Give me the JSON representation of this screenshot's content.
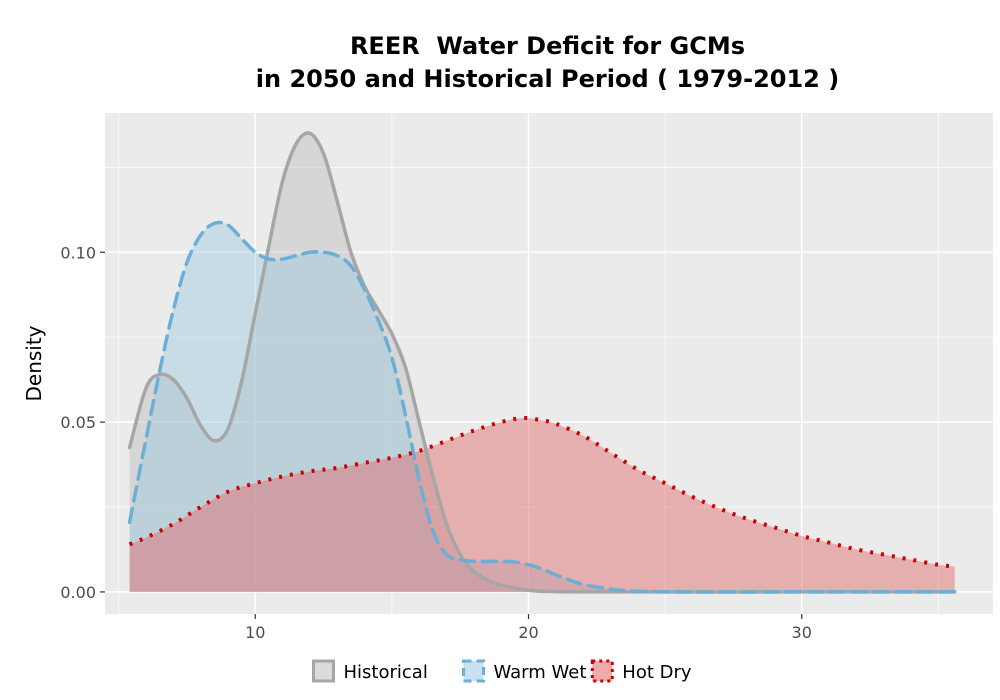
{
  "chart_data": {
    "type": "area",
    "title_lines": [
      "REER  Water Deficit for GCMs",
      "in 2050 and Historical Period ( 1979-2012 )"
    ],
    "xlabel": "",
    "ylabel": "Density",
    "xlim": [
      4.5,
      37
    ],
    "ylim": [
      -0.0065,
      0.141
    ],
    "x_ticks": [
      10,
      20,
      30
    ],
    "x_tick_labels": [
      "10",
      "20",
      "30"
    ],
    "y_ticks": [
      0.0,
      0.05,
      0.1
    ],
    "y_tick_labels": [
      "0.00",
      "0.05",
      "0.10"
    ],
    "grid": true,
    "legend_position": "bottom",
    "series": [
      {
        "name": "Historical",
        "fill": "#bdbdbd",
        "stroke": "#a6a6a6",
        "line_style": "solid",
        "fill_opacity": 0.45,
        "points": [
          [
            5.4,
            0.0425
          ],
          [
            6.0,
            0.06
          ],
          [
            6.5,
            0.064
          ],
          [
            7.0,
            0.0625
          ],
          [
            7.5,
            0.057
          ],
          [
            8.0,
            0.049
          ],
          [
            8.5,
            0.0445
          ],
          [
            9.0,
            0.048
          ],
          [
            9.5,
            0.062
          ],
          [
            10.0,
            0.082
          ],
          [
            10.5,
            0.102
          ],
          [
            11.0,
            0.121
          ],
          [
            11.5,
            0.132
          ],
          [
            12.0,
            0.135
          ],
          [
            12.5,
            0.129
          ],
          [
            13.0,
            0.115
          ],
          [
            13.5,
            0.1
          ],
          [
            14.0,
            0.09
          ],
          [
            14.5,
            0.083
          ],
          [
            15.0,
            0.076
          ],
          [
            15.5,
            0.066
          ],
          [
            16.0,
            0.05
          ],
          [
            16.5,
            0.034
          ],
          [
            17.0,
            0.02
          ],
          [
            17.5,
            0.011
          ],
          [
            18.0,
            0.006
          ],
          [
            18.5,
            0.0035
          ],
          [
            19.0,
            0.002
          ],
          [
            20.0,
            0.0005
          ],
          [
            21.0,
            0.0001
          ],
          [
            23.0,
            0.0
          ],
          [
            30.0,
            0.0
          ],
          [
            35.6,
            0.0
          ]
        ]
      },
      {
        "name": "Warm Wet",
        "fill": "#9ecae1",
        "stroke": "#6baed6",
        "line_style": "dashed",
        "fill_opacity": 0.45,
        "points": [
          [
            5.4,
            0.0205
          ],
          [
            6.0,
            0.045
          ],
          [
            6.5,
            0.065
          ],
          [
            7.0,
            0.083
          ],
          [
            7.5,
            0.097
          ],
          [
            8.0,
            0.105
          ],
          [
            8.5,
            0.1085
          ],
          [
            9.0,
            0.108
          ],
          [
            9.5,
            0.104
          ],
          [
            10.0,
            0.1
          ],
          [
            10.5,
            0.098
          ],
          [
            11.0,
            0.098
          ],
          [
            11.5,
            0.099
          ],
          [
            12.0,
            0.1
          ],
          [
            12.5,
            0.1
          ],
          [
            13.0,
            0.099
          ],
          [
            13.5,
            0.096
          ],
          [
            14.0,
            0.089
          ],
          [
            14.5,
            0.08
          ],
          [
            15.0,
            0.069
          ],
          [
            15.5,
            0.052
          ],
          [
            16.0,
            0.033
          ],
          [
            16.5,
            0.018
          ],
          [
            17.0,
            0.011
          ],
          [
            17.5,
            0.0095
          ],
          [
            18.0,
            0.009
          ],
          [
            18.5,
            0.009
          ],
          [
            19.0,
            0.009
          ],
          [
            19.5,
            0.0088
          ],
          [
            20.0,
            0.008
          ],
          [
            20.5,
            0.0068
          ],
          [
            21.0,
            0.005
          ],
          [
            21.5,
            0.0035
          ],
          [
            22.0,
            0.0022
          ],
          [
            23.0,
            0.0008
          ],
          [
            24.0,
            0.0002
          ],
          [
            26.0,
            0.0
          ],
          [
            30.0,
            0.0
          ],
          [
            35.6,
            0.0
          ]
        ]
      },
      {
        "name": "Hot Dry",
        "fill": "#e06666",
        "stroke": "#cc0000",
        "line_style": "dotted",
        "fill_opacity": 0.45,
        "points": [
          [
            5.4,
            0.014
          ],
          [
            6.0,
            0.016
          ],
          [
            7.0,
            0.02
          ],
          [
            8.0,
            0.025
          ],
          [
            9.0,
            0.0295
          ],
          [
            10.0,
            0.032
          ],
          [
            11.0,
            0.034
          ],
          [
            12.0,
            0.0355
          ],
          [
            13.0,
            0.0365
          ],
          [
            14.0,
            0.038
          ],
          [
            15.0,
            0.0395
          ],
          [
            16.0,
            0.0415
          ],
          [
            17.0,
            0.0445
          ],
          [
            18.0,
            0.0475
          ],
          [
            19.0,
            0.05
          ],
          [
            19.8,
            0.0512
          ],
          [
            20.5,
            0.0505
          ],
          [
            21.0,
            0.0495
          ],
          [
            22.0,
            0.046
          ],
          [
            23.0,
            0.041
          ],
          [
            24.0,
            0.036
          ],
          [
            25.0,
            0.032
          ],
          [
            26.0,
            0.028
          ],
          [
            27.0,
            0.0245
          ],
          [
            28.0,
            0.0215
          ],
          [
            29.0,
            0.019
          ],
          [
            30.0,
            0.0165
          ],
          [
            31.0,
            0.0145
          ],
          [
            32.0,
            0.0125
          ],
          [
            33.0,
            0.011
          ],
          [
            34.0,
            0.0095
          ],
          [
            35.0,
            0.008
          ],
          [
            35.6,
            0.0075
          ]
        ]
      }
    ]
  }
}
